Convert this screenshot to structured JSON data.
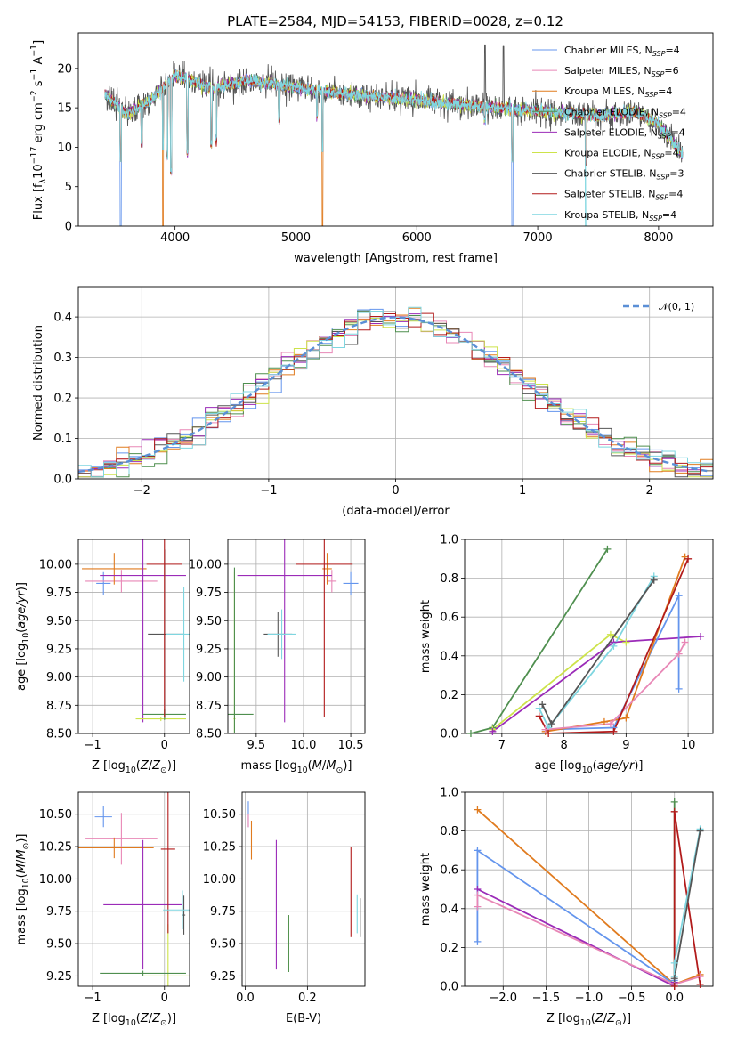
{
  "title": "PLATE=2584, MJD=54153, FIBERID=0028, z=0.12",
  "colors": {
    "chabrier_miles": "#6495ed",
    "salpeter_miles": "#e887b6",
    "kroupa_miles": "#e07b1f",
    "chabrier_elodie": "#4f8f4f",
    "salpeter_elodie": "#9b2bb8",
    "kroupa_elodie": "#cde34a",
    "chabrier_stelib": "#555555",
    "salpeter_stelib": "#b21b1b",
    "kroupa_stelib": "#7fd6e0"
  },
  "chart_data": [
    {
      "id": "spectrum",
      "type": "line",
      "title": "PLATE=2584, MJD=54153, FIBERID=0028, z=0.12",
      "xlabel": "wavelength [Angstrom, rest frame]",
      "ylabel": "Flux [f_λ 10^-17 erg cm^-2 s^-1 A^-1]",
      "xlim": [
        3200,
        8450
      ],
      "ylim": [
        0,
        24.5
      ],
      "xticks": [
        4000,
        5000,
        6000,
        7000,
        8000
      ],
      "yticks": [
        0,
        5,
        10,
        15,
        20
      ],
      "grid": false,
      "legend": "top-right",
      "legend_entries": [
        {
          "label": "Chabrier MILES, N",
          "sub": "SSP",
          "suffix": "=4",
          "color_key": "chabrier_miles"
        },
        {
          "label": "Salpeter MILES, N",
          "sub": "SSP",
          "suffix": "=6",
          "color_key": "salpeter_miles"
        },
        {
          "label": "Kroupa MILES, N",
          "sub": "SSP",
          "suffix": "=4",
          "color_key": "kroupa_miles"
        },
        {
          "label": "Chabrier ELODIE, N",
          "sub": "SSP",
          "suffix": "=4",
          "color_key": "chabrier_elodie"
        },
        {
          "label": "Salpeter ELODIE, N",
          "sub": "SSP",
          "suffix": "=4",
          "color_key": "salpeter_elodie"
        },
        {
          "label": "Kroupa ELODIE, N",
          "sub": "SSP",
          "suffix": "=4",
          "color_key": "kroupa_elodie"
        },
        {
          "label": "Chabrier STELIB, N",
          "sub": "SSP",
          "suffix": "=3",
          "color_key": "chabrier_stelib"
        },
        {
          "label": "Salpeter STELIB, N",
          "sub": "SSP",
          "suffix": "=4",
          "color_key": "salpeter_stelib"
        },
        {
          "label": "Kroupa STELIB, N",
          "sub": "SSP",
          "suffix": "=4",
          "color_key": "kroupa_stelib"
        }
      ],
      "continuum": [
        [
          3420,
          16.8
        ],
        [
          3600,
          14.2
        ],
        [
          3800,
          16.0
        ],
        [
          4000,
          19.2
        ],
        [
          4300,
          17.5
        ],
        [
          4600,
          18.5
        ],
        [
          5000,
          17.6
        ],
        [
          5500,
          16.6
        ],
        [
          6000,
          16.0
        ],
        [
          6500,
          15.2
        ],
        [
          7000,
          14.6
        ],
        [
          7500,
          14.0
        ],
        [
          7800,
          14.5
        ],
        [
          8000,
          13.0
        ],
        [
          8200,
          9.0
        ]
      ],
      "absorption_lines": [
        [
          3550,
          0
        ],
        [
          3725,
          10.5
        ],
        [
          3900,
          0
        ],
        [
          3934,
          9.0
        ],
        [
          3968,
          7.0
        ],
        [
          4102,
          9.5
        ],
        [
          4300,
          10.5
        ],
        [
          4340,
          11.0
        ],
        [
          4861,
          13.5
        ],
        [
          5175,
          14.0
        ],
        [
          5220,
          0
        ],
        [
          6563,
          13.5
        ],
        [
          6790,
          0
        ],
        [
          7400,
          0
        ]
      ],
      "emission_lines": [
        [
          6563,
          23.0
        ],
        [
          6716,
          22.8
        ]
      ]
    },
    {
      "id": "residuals",
      "type": "line",
      "xlabel": "(data-model)/error",
      "ylabel": "Normed distribution",
      "xlim": [
        -2.5,
        2.5
      ],
      "ylim": [
        0,
        0.475
      ],
      "xticks": [
        -2,
        -1,
        0,
        1,
        2
      ],
      "yticks": [
        0.0,
        0.1,
        0.2,
        0.3,
        0.4
      ],
      "grid": true,
      "legend": "top-right",
      "reference_curve": {
        "name": "𝒩(0, 1)",
        "mean": 0,
        "sigma": 1,
        "color": "#5b8fd6"
      },
      "bins": {
        "start": -2.5,
        "width": 0.1,
        "count": 50
      }
    },
    {
      "id": "age_vs_Z",
      "type": "scatter",
      "xlabel": "Z [log10(Z/Z⊙)]",
      "ylabel": "age [log10(age/yr)]",
      "xlim": [
        -1.2,
        0.35
      ],
      "ylim": [
        8.5,
        10.22
      ],
      "xticks": [
        -1,
        0
      ],
      "yticks": [
        8.5,
        8.75,
        9.0,
        9.25,
        9.5,
        9.75,
        10.0
      ],
      "grid": true,
      "points": [
        {
          "c": "chabrier_miles",
          "x": -0.85,
          "y": 9.83,
          "xerr": 0.1,
          "yerr": 0.1
        },
        {
          "c": "salpeter_miles",
          "x": -0.6,
          "y": 9.85,
          "xerr": 0.5,
          "yerr": 0.1
        },
        {
          "c": "kroupa_miles",
          "x": -0.7,
          "y": 9.96,
          "xerr": 0.45,
          "yerr": 0.14
        },
        {
          "c": "salpeter_elodie",
          "x": -0.3,
          "y": 9.9,
          "xerr": 0.6,
          "yerr": 1.3
        },
        {
          "c": "kroupa_elodie",
          "x": -0.05,
          "y": 8.63,
          "xerr": 0.35,
          "yerr": 0.02
        },
        {
          "c": "chabrier_elodie",
          "x": 0.0,
          "y": 8.67,
          "xerr": 0.3,
          "yerr": 0.05
        },
        {
          "c": "chabrier_stelib",
          "x": 0.02,
          "y": 9.38,
          "xerr": 0.25,
          "yerr": 0.75
        },
        {
          "c": "salpeter_stelib",
          "x": 0.0,
          "y": 10.0,
          "xerr": 0.25,
          "yerr": 1.35
        },
        {
          "c": "kroupa_stelib",
          "x": 0.27,
          "y": 9.38,
          "xerr": 0.25,
          "yerr": 0.42
        }
      ]
    },
    {
      "id": "age_vs_mass",
      "type": "scatter",
      "xlabel": "mass [log10(M/M⊙)]",
      "ylabel": "",
      "xlim": [
        9.2,
        10.65
      ],
      "ylim": [
        8.5,
        10.22
      ],
      "xticks": [
        9.5,
        10.0,
        10.5
      ],
      "yticks": [
        8.5,
        8.75,
        9.0,
        9.25,
        9.5,
        9.75,
        10.0
      ],
      "grid": true,
      "points": [
        {
          "c": "chabrier_miles",
          "x": 10.5,
          "y": 9.83,
          "xerr": 0.08,
          "yerr": 0.1
        },
        {
          "c": "salpeter_miles",
          "x": 10.3,
          "y": 9.85,
          "xerr": 0.05,
          "yerr": 0.1
        },
        {
          "c": "kroupa_miles",
          "x": 10.25,
          "y": 9.96,
          "xerr": 0.05,
          "yerr": 0.14
        },
        {
          "c": "salpeter_elodie",
          "x": 9.8,
          "y": 9.9,
          "xerr": 0.5,
          "yerr": 1.3
        },
        {
          "c": "kroupa_elodie",
          "x": 9.27,
          "y": 8.63,
          "xerr": 0.01,
          "yerr": 1.3
        },
        {
          "c": "chabrier_elodie",
          "x": 9.27,
          "y": 8.67,
          "xerr": 0.2,
          "yerr": 1.3
        },
        {
          "c": "chabrier_stelib",
          "x": 9.73,
          "y": 9.38,
          "xerr": 0.15,
          "yerr": 0.2
        },
        {
          "c": "salpeter_stelib",
          "x": 10.22,
          "y": 10.0,
          "xerr": 0.3,
          "yerr": 1.35
        },
        {
          "c": "kroupa_stelib",
          "x": 9.77,
          "y": 9.38,
          "xerr": 0.15,
          "yerr": 0.22
        }
      ]
    },
    {
      "id": "mass_weight_vs_age",
      "type": "line",
      "xlabel": "age [log10(age/yr)]",
      "ylabel": "mass weight",
      "xlim": [
        6.4,
        10.4
      ],
      "ylim": [
        0,
        1.0
      ],
      "xticks": [
        7,
        8,
        9,
        10
      ],
      "yticks": [
        0.0,
        0.2,
        0.4,
        0.6,
        0.8,
        1.0
      ],
      "grid": true,
      "series": [
        {
          "c": "chabrier_elodie",
          "points": [
            [
              6.5,
              0.0
            ],
            [
              6.85,
              0.03
            ],
            [
              8.7,
              0.95
            ]
          ]
        },
        {
          "c": "kroupa_elodie",
          "points": [
            [
              6.85,
              0.02
            ],
            [
              8.75,
              0.51
            ],
            [
              9.0,
              0.47
            ]
          ]
        },
        {
          "c": "salpeter_elodie",
          "points": [
            [
              6.85,
              0.01
            ],
            [
              8.8,
              0.47
            ],
            [
              10.2,
              0.5
            ]
          ]
        },
        {
          "c": "kroupa_stelib",
          "points": [
            [
              7.6,
              0.13
            ],
            [
              7.75,
              0.03
            ],
            [
              8.8,
              0.45
            ],
            [
              9.45,
              0.81
            ]
          ]
        },
        {
          "c": "chabrier_stelib",
          "points": [
            [
              7.65,
              0.15
            ],
            [
              7.8,
              0.05
            ],
            [
              9.45,
              0.79
            ]
          ]
        },
        {
          "c": "chabrier_miles",
          "points": [
            [
              7.7,
              0.02
            ],
            [
              8.8,
              0.03
            ],
            [
              9.85,
              0.71
            ],
            [
              9.85,
              0.23
            ]
          ]
        },
        {
          "c": "kroupa_miles",
          "points": [
            [
              7.7,
              0.01
            ],
            [
              8.65,
              0.06
            ],
            [
              9.0,
              0.08
            ],
            [
              9.95,
              0.91
            ]
          ]
        },
        {
          "c": "salpeter_miles",
          "points": [
            [
              7.7,
              0.02
            ],
            [
              8.75,
              0.05
            ],
            [
              9.85,
              0.41
            ],
            [
              9.95,
              0.47
            ]
          ]
        },
        {
          "c": "salpeter_stelib",
          "points": [
            [
              7.6,
              0.09
            ],
            [
              7.75,
              0.0
            ],
            [
              8.8,
              0.01
            ],
            [
              10.0,
              0.9
            ]
          ]
        }
      ]
    },
    {
      "id": "mass_vs_Z",
      "type": "scatter",
      "xlabel": "Z [log10(Z/Z⊙)]",
      "ylabel": "mass [log10(M/M⊙)]",
      "xlim": [
        -1.2,
        0.35
      ],
      "ylim": [
        9.17,
        10.67
      ],
      "xticks": [
        -1,
        0
      ],
      "yticks": [
        9.25,
        9.5,
        9.75,
        10.0,
        10.25,
        10.5
      ],
      "grid": true,
      "points": [
        {
          "c": "chabrier_miles",
          "x": -0.85,
          "y": 10.48,
          "xerr": 0.12,
          "yerr": 0.08
        },
        {
          "c": "salpeter_miles",
          "x": -0.6,
          "y": 10.31,
          "xerr": 0.5,
          "yerr": 0.2
        },
        {
          "c": "kroupa_miles",
          "x": -0.7,
          "y": 10.24,
          "xerr": 0.55,
          "yerr": 0.08
        },
        {
          "c": "salpeter_elodie",
          "x": -0.3,
          "y": 9.8,
          "xerr": 0.55,
          "yerr": 0.5
        },
        {
          "c": "kroupa_elodie",
          "x": 0.05,
          "y": 9.25,
          "xerr": 0.35,
          "yerr": 0.4
        },
        {
          "c": "chabrier_elodie",
          "x": -0.3,
          "y": 9.27,
          "xerr": 0.6,
          "yerr": 0.02
        },
        {
          "c": "chabrier_stelib",
          "x": 0.27,
          "y": 9.72,
          "xerr": 0.02,
          "yerr": 0.15
        },
        {
          "c": "salpeter_stelib",
          "x": 0.05,
          "y": 10.23,
          "xerr": 0.1,
          "yerr": 0.65
        },
        {
          "c": "kroupa_stelib",
          "x": 0.25,
          "y": 9.76,
          "xerr": 0.27,
          "yerr": 0.15
        }
      ]
    },
    {
      "id": "mass_vs_ebv",
      "type": "scatter",
      "xlabel": "E(B-V)",
      "ylabel": "",
      "xlim": [
        -0.01,
        0.385
      ],
      "ylim": [
        9.17,
        10.67
      ],
      "xticks": [
        0.0,
        0.2
      ],
      "yticks": [
        9.25,
        9.5,
        9.75,
        10.0,
        10.25,
        10.5
      ],
      "grid": true,
      "points": [
        {
          "c": "chabrier_miles",
          "x": 0.01,
          "y": 10.5,
          "yerr": 0.1
        },
        {
          "c": "salpeter_miles",
          "x": 0.01,
          "y": 10.45,
          "yerr": 0.05
        },
        {
          "c": "kroupa_miles",
          "x": 0.02,
          "y": 10.3,
          "yerr": 0.15
        },
        {
          "c": "salpeter_elodie",
          "x": 0.1,
          "y": 9.8,
          "yerr": 0.5
        },
        {
          "c": "kroupa_elodie",
          "x": 0.14,
          "y": 9.5,
          "yerr": 0.22
        },
        {
          "c": "chabrier_elodie",
          "x": 0.14,
          "y": 9.5,
          "yerr": 0.22
        },
        {
          "c": "chabrier_stelib",
          "x": 0.37,
          "y": 9.7,
          "yerr": 0.15
        },
        {
          "c": "salpeter_stelib",
          "x": 0.34,
          "y": 9.9,
          "yerr": 0.35
        },
        {
          "c": "kroupa_stelib",
          "x": 0.36,
          "y": 9.73,
          "yerr": 0.15
        }
      ]
    },
    {
      "id": "mass_weight_vs_Z",
      "type": "line",
      "xlabel": "Z [log10(Z/Z⊙)]",
      "ylabel": "mass weight",
      "xlim": [
        -2.45,
        0.45
      ],
      "ylim": [
        0,
        1.0
      ],
      "xticks": [
        -2.0,
        -1.5,
        -1.0,
        -0.5,
        0.0
      ],
      "yticks": [
        0.0,
        0.2,
        0.4,
        0.6,
        0.8,
        1.0
      ],
      "grid": true,
      "series": [
        {
          "c": "kroupa_miles",
          "points": [
            [
              -2.3,
              0.91
            ],
            [
              0.0,
              0.01
            ],
            [
              0.3,
              0.06
            ]
          ]
        },
        {
          "c": "chabrier_miles",
          "points": [
            [
              -2.3,
              0.23
            ],
            [
              -2.3,
              0.7
            ],
            [
              0.0,
              0.01
            ],
            [
              0.0,
              0.03
            ]
          ]
        },
        {
          "c": "salpeter_elodie",
          "points": [
            [
              -2.3,
              0.5
            ],
            [
              0.0,
              0.0
            ],
            [
              0.0,
              0.02
            ]
          ]
        },
        {
          "c": "salpeter_miles",
          "points": [
            [
              -2.3,
              0.41
            ],
            [
              -2.3,
              0.47
            ],
            [
              0.0,
              0.01
            ],
            [
              0.3,
              0.05
            ]
          ]
        },
        {
          "c": "chabrier_elodie",
          "points": [
            [
              0.0,
              0.0
            ],
            [
              0.0,
              0.95
            ]
          ]
        },
        {
          "c": "salpeter_stelib",
          "points": [
            [
              0.0,
              0.0
            ],
            [
              0.0,
              0.9
            ],
            [
              0.3,
              0.01
            ]
          ]
        },
        {
          "c": "kroupa_stelib",
          "points": [
            [
              0.0,
              0.05
            ],
            [
              0.0,
              0.12
            ],
            [
              0.3,
              0.81
            ]
          ]
        },
        {
          "c": "chabrier_stelib",
          "points": [
            [
              0.0,
              0.04
            ],
            [
              0.3,
              0.8
            ]
          ]
        }
      ]
    }
  ]
}
